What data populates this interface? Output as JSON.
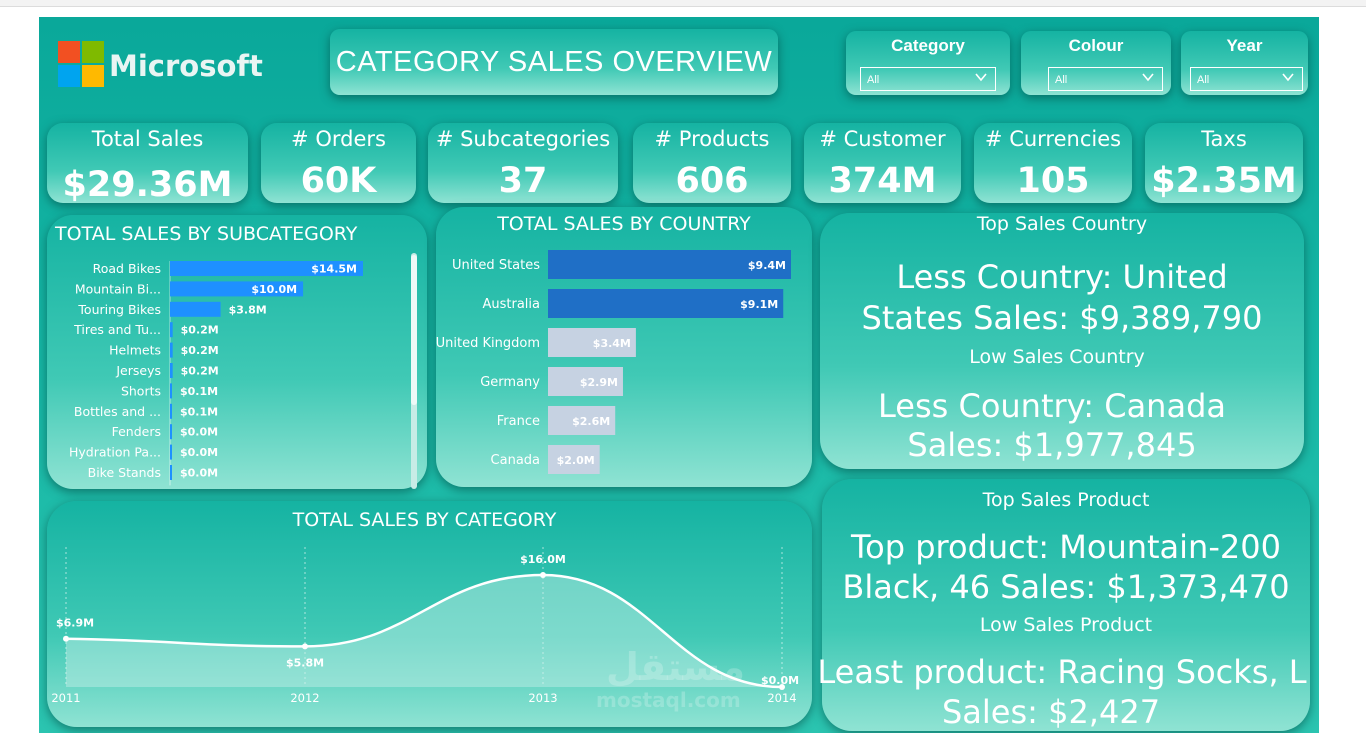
{
  "brand": {
    "name": "Microsoft",
    "colors": [
      "#f25022",
      "#7fba00",
      "#00a4ef",
      "#ffb900"
    ]
  },
  "header": {
    "title": "CATEGORY SALES OVERVIEW"
  },
  "filters": [
    {
      "label": "Category",
      "value": "All"
    },
    {
      "label": "Colour",
      "value": "All"
    },
    {
      "label": "Year",
      "value": "All"
    }
  ],
  "kpis": [
    {
      "label": "Total Sales",
      "value": "$29.36M"
    },
    {
      "label": "# Orders",
      "value": "60K"
    },
    {
      "label": "# Subcategories",
      "value": "37"
    },
    {
      "label": "# Products",
      "value": "606"
    },
    {
      "label": "# Customer",
      "value": "374M"
    },
    {
      "label": "# Currencies",
      "value": "105"
    },
    {
      "label": "Taxs",
      "value": "$2.35M"
    }
  ],
  "top_country": {
    "title": "Top Sales Country",
    "line1": "Less Country: United",
    "line2": "States  Sales: $9,389,790",
    "low_title": "Low Sales Country",
    "low_line1": "Less Country: Canada",
    "low_line2": "Sales: $1,977,845"
  },
  "top_product": {
    "title": "Top Sales Product",
    "line1": "Top product: Mountain-200",
    "line2": "Black, 46 Sales: $1,373,470",
    "low_title": "Low Sales Product",
    "low_line1": "Least product: Racing Socks, L",
    "low_line2": "Sales: $2,427"
  },
  "watermark": {
    "arabic": "مستقل",
    "latin": "mostaql.com"
  },
  "chart_data": [
    {
      "type": "bar",
      "orientation": "horizontal",
      "title": "TOTAL SALES BY SUBCATEGORY",
      "categories": [
        "Road Bikes",
        "Mountain Bi...",
        "Touring Bikes",
        "Tires and Tu...",
        "Helmets",
        "Jerseys",
        "Shorts",
        "Bottles and ...",
        "Fenders",
        "Hydration Pa...",
        "Bike Stands"
      ],
      "values": [
        14.5,
        10.0,
        3.8,
        0.2,
        0.2,
        0.2,
        0.1,
        0.1,
        0.0,
        0.0,
        0.0
      ],
      "labels": [
        "$14.5M",
        "$10.0M",
        "$3.8M",
        "$0.2M",
        "$0.2M",
        "$0.2M",
        "$0.1M",
        "$0.1M",
        "$0.0M",
        "$0.0M",
        "$0.0M"
      ],
      "xlim": [
        0,
        14.5
      ],
      "unit": "$M",
      "color": "#1e90ff"
    },
    {
      "type": "bar",
      "orientation": "horizontal",
      "title": "TOTAL SALES BY COUNTRY",
      "categories": [
        "United States",
        "Australia",
        "United Kingdom",
        "Germany",
        "France",
        "Canada"
      ],
      "values": [
        9.4,
        9.1,
        3.4,
        2.9,
        2.6,
        2.0
      ],
      "labels": [
        "$9.4M",
        "$9.1M",
        "$3.4M",
        "$2.9M",
        "$2.6M",
        "$2.0M"
      ],
      "xlim": [
        0,
        9.4
      ],
      "unit": "$M",
      "colors": [
        "#1f6fc6",
        "#1f6fc6",
        "#c6d2e2",
        "#c6d2e2",
        "#c6d2e2",
        "#c6d2e2"
      ]
    },
    {
      "type": "area",
      "title": "TOTAL SALES BY CATEGORY",
      "x": [
        "2011",
        "2012",
        "2013",
        "2014"
      ],
      "values": [
        6.9,
        5.8,
        16.0,
        0.0
      ],
      "labels": [
        "$6.9M",
        "$5.8M",
        "$16.0M",
        "$0.0M"
      ],
      "ylim": [
        0,
        16.0
      ],
      "unit": "$M"
    }
  ]
}
